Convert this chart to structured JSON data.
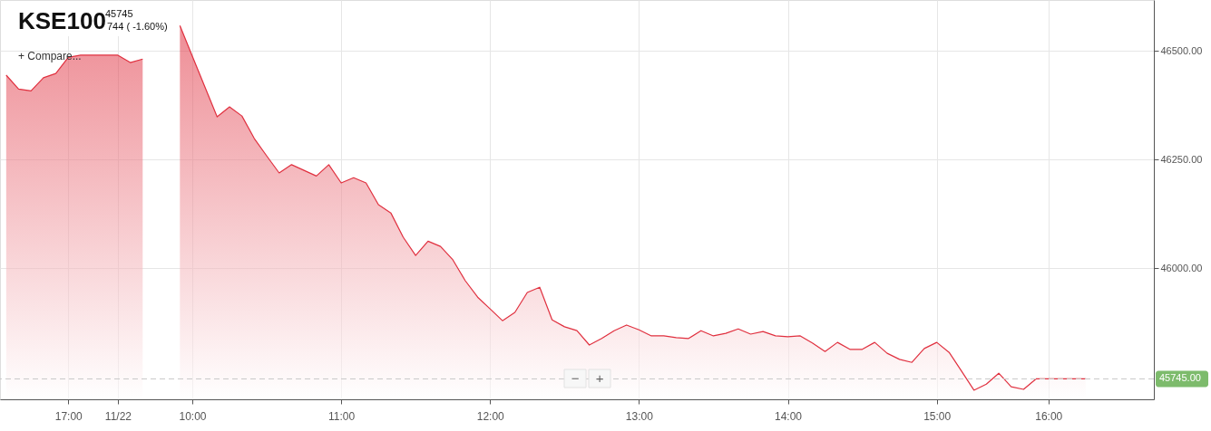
{
  "chart_data": {
    "type": "area",
    "title": "KSE100",
    "subtitle": "45745",
    "annotations": [
      "744 ( -1.60%)",
      "+ Compare...",
      "−",
      "+"
    ],
    "categories": [
      null,
      null,
      null,
      null,
      null,
      "17:00",
      null,
      null,
      null,
      "11/22",
      null,
      null,
      null,
      null,
      null,
      "10:00",
      null,
      null,
      null,
      null,
      null,
      null,
      null,
      null,
      null,
      null,
      null,
      "11:00",
      null,
      null,
      null,
      null,
      null,
      null,
      null,
      null,
      null,
      null,
      null,
      "12:00",
      null,
      null,
      null,
      null,
      null,
      null,
      null,
      null,
      null,
      null,
      null,
      "13:00",
      null,
      null,
      null,
      null,
      null,
      null,
      null,
      null,
      null,
      null,
      null,
      "14:00",
      null,
      null,
      null,
      null,
      null,
      null,
      null,
      null,
      null,
      null,
      null,
      "15:00",
      null,
      null,
      null,
      null,
      null,
      null,
      null,
      null,
      "16:00",
      null,
      null,
      null,
      null,
      null,
      null,
      null,
      null
    ],
    "series": [
      {
        "color": "#e0303f",
        "values": [
          46444,
          46412,
          46408,
          46438,
          46448,
          46485,
          46490,
          46490,
          46490,
          46490,
          46473,
          46481,
          null,
          null,
          46558,
          46488,
          46418,
          46348,
          46371,
          46350,
          46298,
          46258,
          46219,
          46238,
          46225,
          46212,
          46238,
          46196,
          46208,
          46196,
          46146,
          46127,
          46071,
          46029,
          46062,
          46050,
          46019,
          45971,
          45933,
          45906,
          45879,
          45898,
          45944,
          45956,
          45881,
          45865,
          45856,
          45823,
          45838,
          45856,
          45869,
          45858,
          45844,
          45844,
          45840,
          45838,
          45856,
          45844,
          45850,
          45860,
          45848,
          45854,
          45844,
          45842,
          45844,
          45827,
          45808,
          45829,
          45813,
          45813,
          45829,
          45804,
          45790,
          45783,
          45815,
          45829,
          45806,
          45763,
          45719,
          45733,
          45758,
          45727,
          45721,
          45745,
          45745,
          45745,
          45745,
          45745,
          null,
          null,
          null,
          null,
          null
        ]
      }
    ],
    "ylim": [
      45698,
      46617
    ],
    "yticks": [
      {
        "value": 46000,
        "label": "46000.00"
      },
      {
        "value": 46250,
        "label": "46250.00"
      },
      {
        "value": 46500,
        "label": "46500.00"
      }
    ],
    "ref_lines": [
      {
        "axis": "y",
        "value": 45745,
        "label": "45745.00",
        "color": "#c8c8c8",
        "line_style": "dashed"
      }
    ],
    "grid": true
  }
}
